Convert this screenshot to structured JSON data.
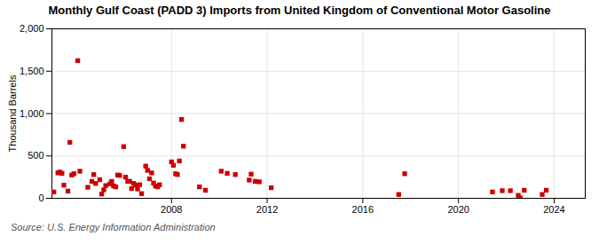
{
  "chart_data": {
    "type": "scatter",
    "title": "Monthly Gulf Coast (PADD 3) Imports from United Kingdom of Conventional Motor Gasoline",
    "ylabel": "Thousand Barrels",
    "source": "Source: U.S. Energy Information Administration",
    "color": "#cc0000",
    "marker": "square",
    "grid": true,
    "xlim": [
      2003.0,
      2025.3
    ],
    "xticks": [
      2008,
      2012,
      2016,
      2020,
      2024
    ],
    "ylim": [
      0,
      2000
    ],
    "yticks": [
      0,
      500,
      {
        "value": 1000,
        "label": "1,000"
      },
      {
        "value": 1500,
        "label": "1,500"
      },
      {
        "value": 2000,
        "label": "2,000"
      }
    ],
    "x": [
      2003.08,
      2003.25,
      2003.33,
      2003.42,
      2003.5,
      2003.67,
      2003.75,
      2003.83,
      2003.92,
      2004.08,
      2004.17,
      2004.5,
      2004.67,
      2004.75,
      2004.83,
      2005.0,
      2005.08,
      2005.17,
      2005.25,
      2005.42,
      2005.5,
      2005.58,
      2005.67,
      2005.75,
      2005.83,
      2006.0,
      2006.08,
      2006.17,
      2006.25,
      2006.33,
      2006.42,
      2006.5,
      2006.58,
      2006.67,
      2006.75,
      2006.92,
      2007.0,
      2007.08,
      2007.17,
      2007.25,
      2007.33,
      2007.42,
      2007.5,
      2008.0,
      2008.08,
      2008.17,
      2008.25,
      2008.33,
      2008.42,
      2008.5,
      2009.17,
      2009.42,
      2010.08,
      2010.33,
      2010.67,
      2011.25,
      2011.33,
      2011.5,
      2011.67,
      2012.17,
      2017.5,
      2017.75,
      2021.42,
      2021.83,
      2022.17,
      2022.5,
      2022.58,
      2022.75,
      2023.5,
      2023.67
    ],
    "values": [
      75,
      300,
      310,
      295,
      155,
      85,
      660,
      275,
      290,
      1625,
      320,
      130,
      200,
      280,
      175,
      220,
      50,
      100,
      150,
      170,
      200,
      145,
      135,
      275,
      270,
      610,
      250,
      200,
      200,
      115,
      175,
      155,
      110,
      160,
      55,
      380,
      330,
      230,
      300,
      180,
      145,
      135,
      160,
      430,
      390,
      290,
      280,
      440,
      930,
      615,
      135,
      95,
      320,
      295,
      280,
      215,
      285,
      200,
      195,
      125,
      45,
      290,
      75,
      90,
      90,
      35,
      5,
      95,
      45,
      95
    ]
  }
}
